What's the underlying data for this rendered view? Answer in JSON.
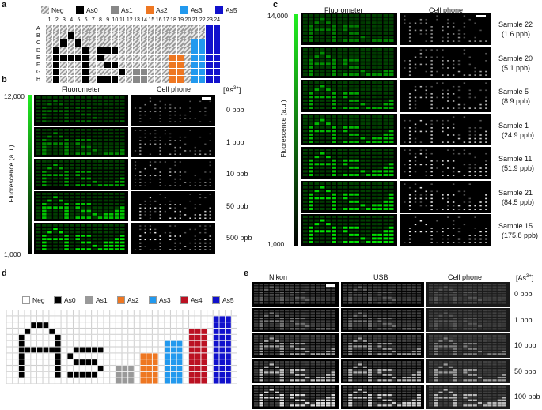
{
  "panel_labels": {
    "a": "a",
    "b": "b",
    "c": "c",
    "d": "d",
    "e": "e"
  },
  "legend_a": [
    {
      "label": "Neg"
    },
    {
      "label": "As0",
      "color": "#000000"
    },
    {
      "label": "As1",
      "color": "#888888"
    },
    {
      "label": "As2",
      "color": "#ee7722"
    },
    {
      "label": "As3",
      "color": "#2299ee"
    },
    {
      "label": "As5",
      "color": "#1111cc"
    }
  ],
  "plate": {
    "cols": [
      "1",
      "2",
      "3",
      "4",
      "5",
      "6",
      "7",
      "8",
      "9",
      "10",
      "11",
      "12",
      "13",
      "14",
      "15",
      "16",
      "17",
      "18",
      "19",
      "20",
      "21",
      "22",
      "23",
      "24"
    ],
    "rows": [
      "A",
      "B",
      "C",
      "D",
      "E",
      "F",
      "G",
      "H"
    ]
  },
  "b": {
    "col1": "Fluorometer",
    "col2": "Cell phone",
    "conc_header": "[As3+]",
    "ymax": "12,000",
    "ymin": "1,000",
    "ylabel": "Fluorescence (a.u.)",
    "rows": [
      "0 ppb",
      "1 ppb",
      "10 ppb",
      "50 ppb",
      "500 ppb"
    ]
  },
  "c": {
    "col1": "Fluorometer",
    "col2": "Cell phone",
    "ymax": "14,000",
    "ymin": "1,000",
    "ylabel": "Fluorescence (a.u.)",
    "rows": [
      {
        "name": "Sample 22",
        "conc": "(1.6 ppb)"
      },
      {
        "name": "Sample 20",
        "conc": "(5.1 ppb)"
      },
      {
        "name": "Sample 5",
        "conc": "(8.9 ppb)"
      },
      {
        "name": "Sample 1",
        "conc": "(24.9 ppb)"
      },
      {
        "name": "Sample 11",
        "conc": "(51.9 ppb)"
      },
      {
        "name": "Sample 21",
        "conc": "(84.5 ppb)"
      },
      {
        "name": "Sample 15",
        "conc": "(175.8 ppb)"
      }
    ]
  },
  "legend_d": [
    {
      "label": "Neg",
      "color": "#ffffff"
    },
    {
      "label": "As0",
      "color": "#000000"
    },
    {
      "label": "As1",
      "color": "#999999"
    },
    {
      "label": "As2",
      "color": "#ee7722"
    },
    {
      "label": "As3",
      "color": "#2299ee"
    },
    {
      "label": "As4",
      "color": "#bb1122"
    },
    {
      "label": "As5",
      "color": "#1111cc"
    }
  ],
  "e": {
    "col1": "Nikon",
    "col2": "USB",
    "col3": "Cell phone",
    "conc_header": "[As3+]",
    "rows": [
      "0 ppb",
      "1 ppb",
      "10 ppb",
      "50 ppb",
      "100 ppb"
    ]
  }
}
